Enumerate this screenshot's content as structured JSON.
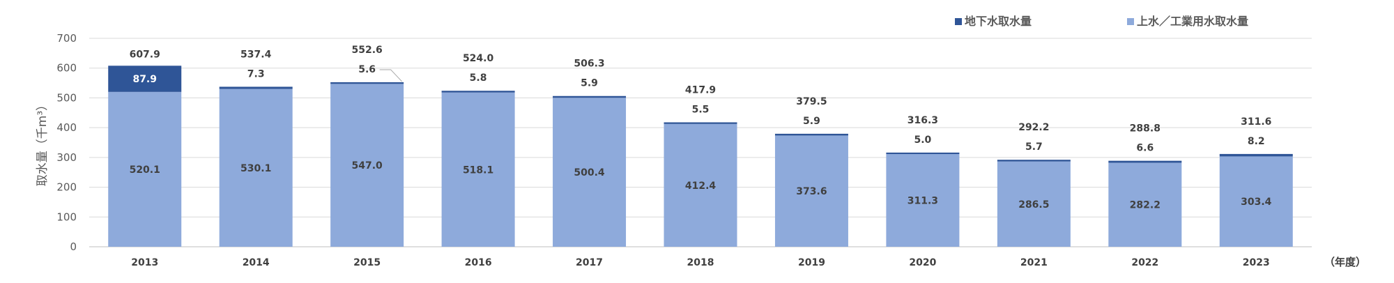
{
  "chart_data": {
    "type": "bar",
    "stacked": true,
    "categories": [
      "2013",
      "2014",
      "2015",
      "2016",
      "2017",
      "2018",
      "2019",
      "2020",
      "2021",
      "2022",
      "2023"
    ],
    "series": [
      {
        "name": "上水／工業用水取水量",
        "color": "#8eaadb",
        "values": [
          520.1,
          530.1,
          547.0,
          518.1,
          500.4,
          412.4,
          373.6,
          311.3,
          286.5,
          282.2,
          303.4
        ],
        "labels": [
          "520.1",
          "530.1",
          "547.0",
          "518.1",
          "500.4",
          "412.4",
          "373.6",
          "311.3",
          "286.5",
          "282.2",
          "303.4"
        ]
      },
      {
        "name": "地下水取水量",
        "color": "#2f5597",
        "values": [
          87.9,
          7.3,
          5.6,
          5.8,
          5.9,
          5.5,
          5.9,
          5.0,
          5.7,
          6.6,
          8.2
        ],
        "labels": [
          "87.9",
          "7.3",
          "5.6",
          "5.8",
          "5.9",
          "5.5",
          "5.9",
          "5.0",
          "5.7",
          "6.6",
          "8.2"
        ]
      }
    ],
    "totals": [
      "607.9",
      "537.4",
      "552.6",
      "524.0",
      "506.3",
      "417.9",
      "379.5",
      "316.3",
      "292.2",
      "288.8",
      "311.6"
    ],
    "ylabel": "取水量（千m³）",
    "xunit": "（年度）",
    "ylim": [
      0,
      700
    ],
    "yticks": [
      0,
      100,
      200,
      300,
      400,
      500,
      600,
      700
    ],
    "grid": true,
    "legend_position": "top-right"
  }
}
